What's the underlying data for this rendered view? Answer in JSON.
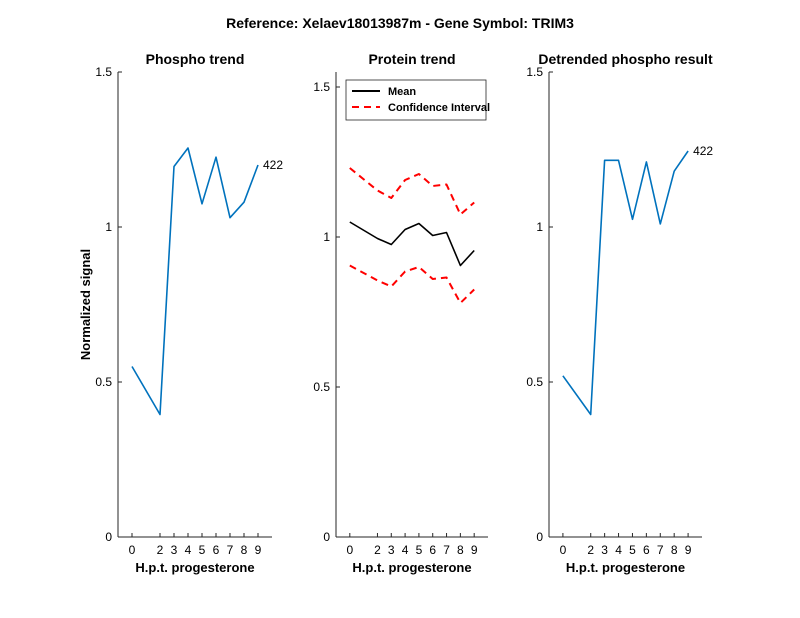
{
  "figure_title": "Reference:  Xelaev18013987m - Gene Symbol:  TRIM3",
  "chart_data": [
    {
      "type": "line",
      "title": "Phospho trend",
      "xlabel": "H.p.t. progesterone",
      "ylabel": "Normalized signal",
      "ylim": [
        0,
        1.5
      ],
      "yticks": [
        "0",
        "0.5",
        "1",
        "1.5"
      ],
      "x": [
        0,
        2,
        3,
        4,
        5,
        6,
        7,
        8,
        9
      ],
      "series": [
        {
          "color": "#0072BD",
          "values": [
            0.55,
            0.395,
            1.195,
            1.255,
            1.075,
            1.225,
            1.03,
            1.08,
            1.2
          ],
          "end_label": "422"
        }
      ]
    },
    {
      "type": "line",
      "title": "Protein trend",
      "xlabel": "H.p.t. progesterone",
      "ylabel": "",
      "ylim": [
        0,
        1.55
      ],
      "yticks": [
        "0",
        "0.5",
        "1",
        "1.5"
      ],
      "legend_position": "top-left",
      "x": [
        0,
        2,
        3,
        4,
        5,
        6,
        7,
        8,
        9
      ],
      "series": [
        {
          "name": "Mean",
          "color": "#000000",
          "style": "solid",
          "values": [
            1.05,
            0.995,
            0.975,
            1.025,
            1.045,
            1.005,
            1.015,
            0.905,
            0.955
          ]
        },
        {
          "name": "Confidence Interval",
          "color": "#FF0000",
          "style": "dashed",
          "values": [
            1.23,
            1.155,
            1.13,
            1.19,
            1.21,
            1.17,
            1.175,
            1.075,
            1.115
          ]
        },
        {
          "color": "#FF0000",
          "style": "dashed",
          "values": [
            0.905,
            0.855,
            0.835,
            0.885,
            0.9,
            0.86,
            0.865,
            0.78,
            0.825
          ]
        }
      ]
    },
    {
      "type": "line",
      "title": "Detrended phospho result",
      "xlabel": "H.p.t. progesterone",
      "ylabel": "",
      "ylim": [
        0,
        1.5
      ],
      "yticks": [
        "0",
        "0.5",
        "1",
        "1.5"
      ],
      "x": [
        0,
        2,
        3,
        4,
        5,
        6,
        7,
        8,
        9
      ],
      "series": [
        {
          "color": "#0072BD",
          "values": [
            0.52,
            0.395,
            1.215,
            1.215,
            1.025,
            1.21,
            1.01,
            1.18,
            1.245
          ],
          "end_label": "422"
        }
      ]
    }
  ],
  "xticks": [
    "0",
    "2",
    "3",
    "4",
    "5",
    "6",
    "7",
    "8",
    "9"
  ]
}
